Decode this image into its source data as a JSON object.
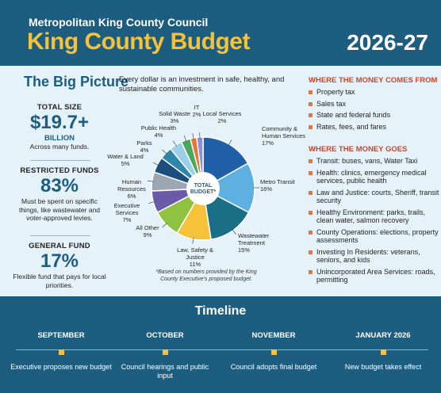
{
  "header": {
    "subtitle": "Metropolitan King County Council",
    "title": "King County Budget",
    "year": "2026-27"
  },
  "big_picture": {
    "heading": "The Big Picture",
    "intro": "Every dollar is an investment in safe, healthy, and sustainable communities."
  },
  "stats": [
    {
      "heading": "TOTAL SIZE",
      "value": "$19.7+",
      "unit": "BILLION",
      "desc": "Across many funds."
    },
    {
      "heading": "RESTRICTED FUNDS",
      "value": "83%",
      "desc": "Must be spent on specific things, like wastewater and voter-approved levies."
    },
    {
      "heading": "GENERAL FUND",
      "value": "17%",
      "desc": "Flexible fund that pays for local priorities."
    }
  ],
  "chart_data": {
    "type": "pie",
    "center_label": "TOTAL BUDGET*",
    "note": "*Based on numbers provided by the King County Executive's proposed budget.",
    "slices": [
      {
        "label": "Community & Human Services",
        "value": 17,
        "display": "17%",
        "color": "#2060a8"
      },
      {
        "label": "Metro Transit",
        "value": 16,
        "display": "16%",
        "color": "#5db0e0"
      },
      {
        "label": "Wastewater Treatment",
        "value": 15,
        "display": "15%",
        "color": "#1a6f86"
      },
      {
        "label": "Law, Safety & Justice",
        "value": 11,
        "display": "11%",
        "color": "#f5c23a"
      },
      {
        "label": "All Other",
        "value": 9,
        "display": "9%",
        "color": "#8fc23f"
      },
      {
        "label": "Executive Services",
        "value": 7,
        "display": "7%",
        "color": "#6a5aa8"
      },
      {
        "label": "Human Resources",
        "value": 6,
        "display": "6%",
        "color": "#9aa7b3"
      },
      {
        "label": "Water & Land",
        "value": 5,
        "display": "5%",
        "color": "#1b4d7d"
      },
      {
        "label": "Parks",
        "value": 4,
        "display": "4%",
        "color": "#2e86a8"
      },
      {
        "label": "Public Health",
        "value": 4,
        "display": "4%",
        "color": "#9ccfe8"
      },
      {
        "label": "Solid Waste",
        "value": 3,
        "display": "3%",
        "color": "#4aa85a"
      },
      {
        "label": "IT",
        "value": 2,
        "display": "2%",
        "color": "#e9733b"
      },
      {
        "label": "Local Services",
        "value": 2,
        "display": "2%",
        "color": "#8d8fd0"
      }
    ]
  },
  "money_comes_from": {
    "heading": "WHERE THE MONEY COMES FROM",
    "items": [
      "Property tax",
      "Sales tax",
      "State and federal funds",
      "Rates, fees, and fares"
    ]
  },
  "money_goes": {
    "heading": "WHERE THE MONEY GOES",
    "items": [
      "Transit: buses, vans, Water Taxi",
      "Health: clinics, emergency medical services, public health",
      "Law and Justice: courts, Sheriff, transit security",
      "Healthy Environment: parks, trails, clean water, salmon recovery",
      "County Operations: elections, property assessments",
      "Investing In Residents: veterans, seniors, and kids",
      "Unincorporated Area Services: roads, permitting"
    ]
  },
  "timeline": {
    "title": "Timeline",
    "items": [
      {
        "month": "SEPTEMBER",
        "text": "Executive proposes new budget"
      },
      {
        "month": "OCTOBER",
        "text": "Council hearings and public input"
      },
      {
        "month": "NOVEMBER",
        "text": "Council adopts final budget"
      },
      {
        "month": "JANUARY 2026",
        "text": "New budget takes effect"
      }
    ]
  }
}
